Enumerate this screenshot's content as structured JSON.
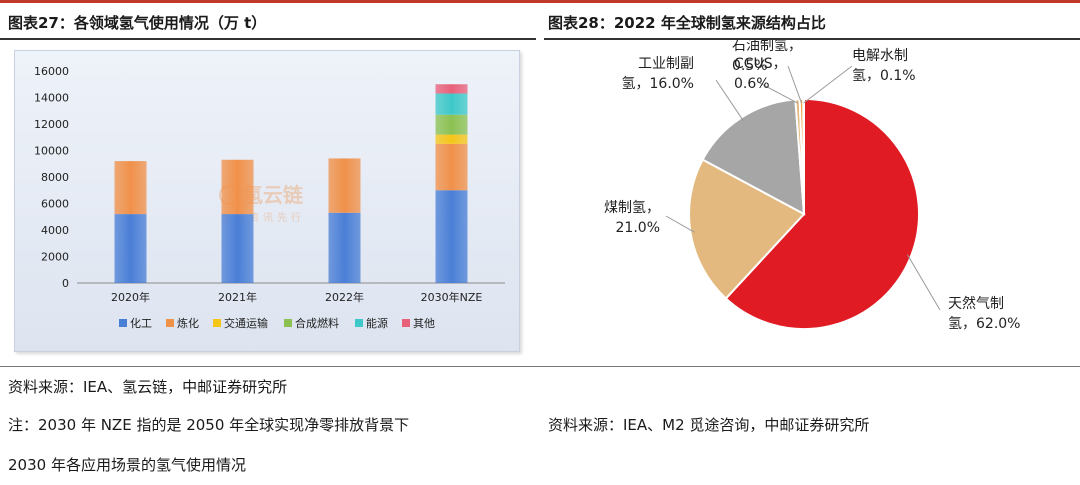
{
  "titles": {
    "left": "图表27：各领域氢气使用情况（万 t）",
    "right": "图表28：2022 年全球制氢来源结构占比"
  },
  "watermark": {
    "name": "氢云链",
    "slogan": "氢能资讯先行"
  },
  "footer": {
    "source_left": "资料来源：IEA、氢云链，中邮证券研究所",
    "note_line1": "注：2030 年 NZE 指的是 2050 年全球实现净零排放背景下",
    "note_line2": "2030 年各应用场景的氢气使用情况",
    "source_right": "资料来源：IEA、M2 觅途咨询，中邮证券研究所"
  },
  "colors": {
    "top_rule": "#c0392b",
    "series": [
      "#4a7fd6",
      "#f0914a",
      "#f5c518",
      "#8cc152",
      "#3ec8c8",
      "#e8607a"
    ],
    "pie": [
      "#e01b24",
      "#e3b97f",
      "#a6a6a6",
      "#e3b97f",
      "#f0a040",
      "#7ab0e0"
    ]
  },
  "chart_data": [
    {
      "type": "bar",
      "stacked": true,
      "categories": [
        "2020年",
        "2021年",
        "2022年",
        "2030年NZE"
      ],
      "y_ticks": [
        "0",
        "2000",
        "4000",
        "6000",
        "8000",
        "10000",
        "12000",
        "14000",
        "16000"
      ],
      "ylim": [
        0,
        16000
      ],
      "legend_position": "bottom",
      "grid": false,
      "series": [
        {
          "name": "化工",
          "values": [
            5200,
            5200,
            5300,
            7000
          ]
        },
        {
          "name": "炼化",
          "values": [
            4000,
            4100,
            4100,
            3500
          ]
        },
        {
          "name": "交通运输",
          "values": [
            0,
            0,
            0,
            700
          ]
        },
        {
          "name": "合成燃料",
          "values": [
            0,
            0,
            0,
            1500
          ]
        },
        {
          "name": "能源",
          "values": [
            0,
            0,
            0,
            1600
          ]
        },
        {
          "name": "其他",
          "values": [
            0,
            0,
            0,
            700
          ]
        }
      ]
    },
    {
      "type": "pie",
      "slices": [
        {
          "label_lines": [
            "天然气制",
            "氢，62.0%"
          ],
          "value": 62.0
        },
        {
          "label_lines": [
            "煤制氢，",
            "21.0%"
          ],
          "value": 21.0
        },
        {
          "label_lines": [
            "工业制副",
            "氢，16.0%"
          ],
          "value": 16.0
        },
        {
          "label_lines": [
            "CCUS，",
            "0.6%"
          ],
          "value": 0.6
        },
        {
          "label_lines": [
            "石油制氢，",
            "0.5%"
          ],
          "value": 0.5
        },
        {
          "label_lines": [
            "电解水制",
            "氢，0.1%"
          ],
          "value": 0.1
        }
      ]
    }
  ]
}
